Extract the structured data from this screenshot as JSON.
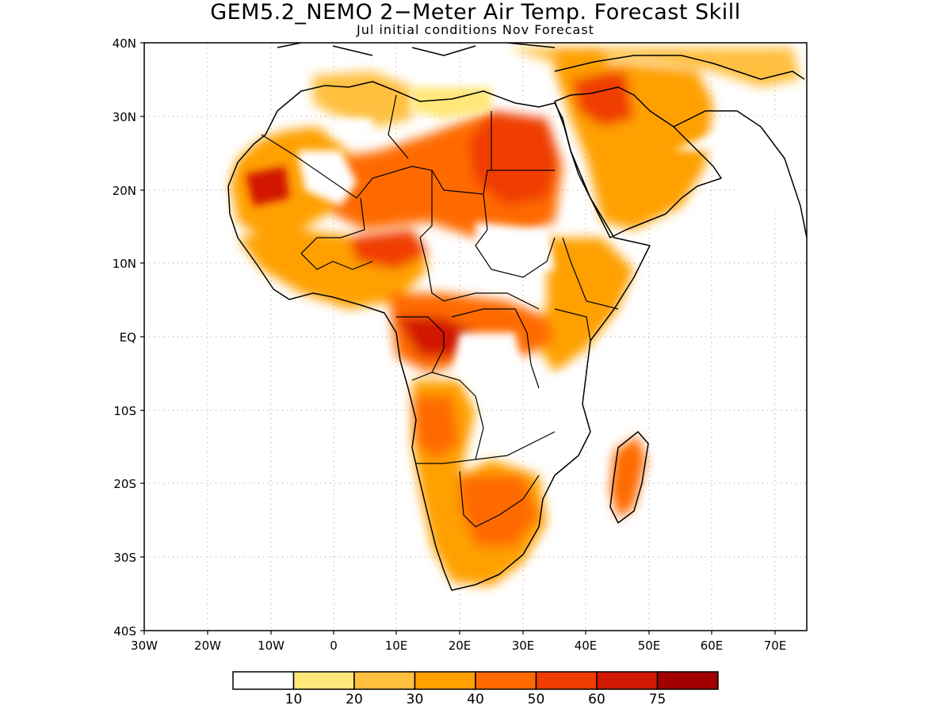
{
  "title": "GEM5.2_NEMO 2−Meter Air Temp. Forecast Skill",
  "subtitle": "Jul initial conditions  Nov Forecast",
  "lat_labels": [
    "40N",
    "30N",
    "20N",
    "10N",
    "EQ",
    "10S",
    "20S",
    "30S",
    "40S"
  ],
  "lon_labels": [
    "30W",
    "20W",
    "10W",
    "0",
    "10E",
    "20E",
    "30E",
    "40E",
    "50E",
    "60E",
    "70E"
  ],
  "colorbar": {
    "colors": [
      "#ffffff",
      "#ffe77a",
      "#ffc040",
      "#ffa000",
      "#ff6a00",
      "#f03c00",
      "#d21800",
      "#a00000"
    ],
    "labels": [
      "10",
      "20",
      "30",
      "40",
      "50",
      "60",
      "75"
    ]
  }
}
